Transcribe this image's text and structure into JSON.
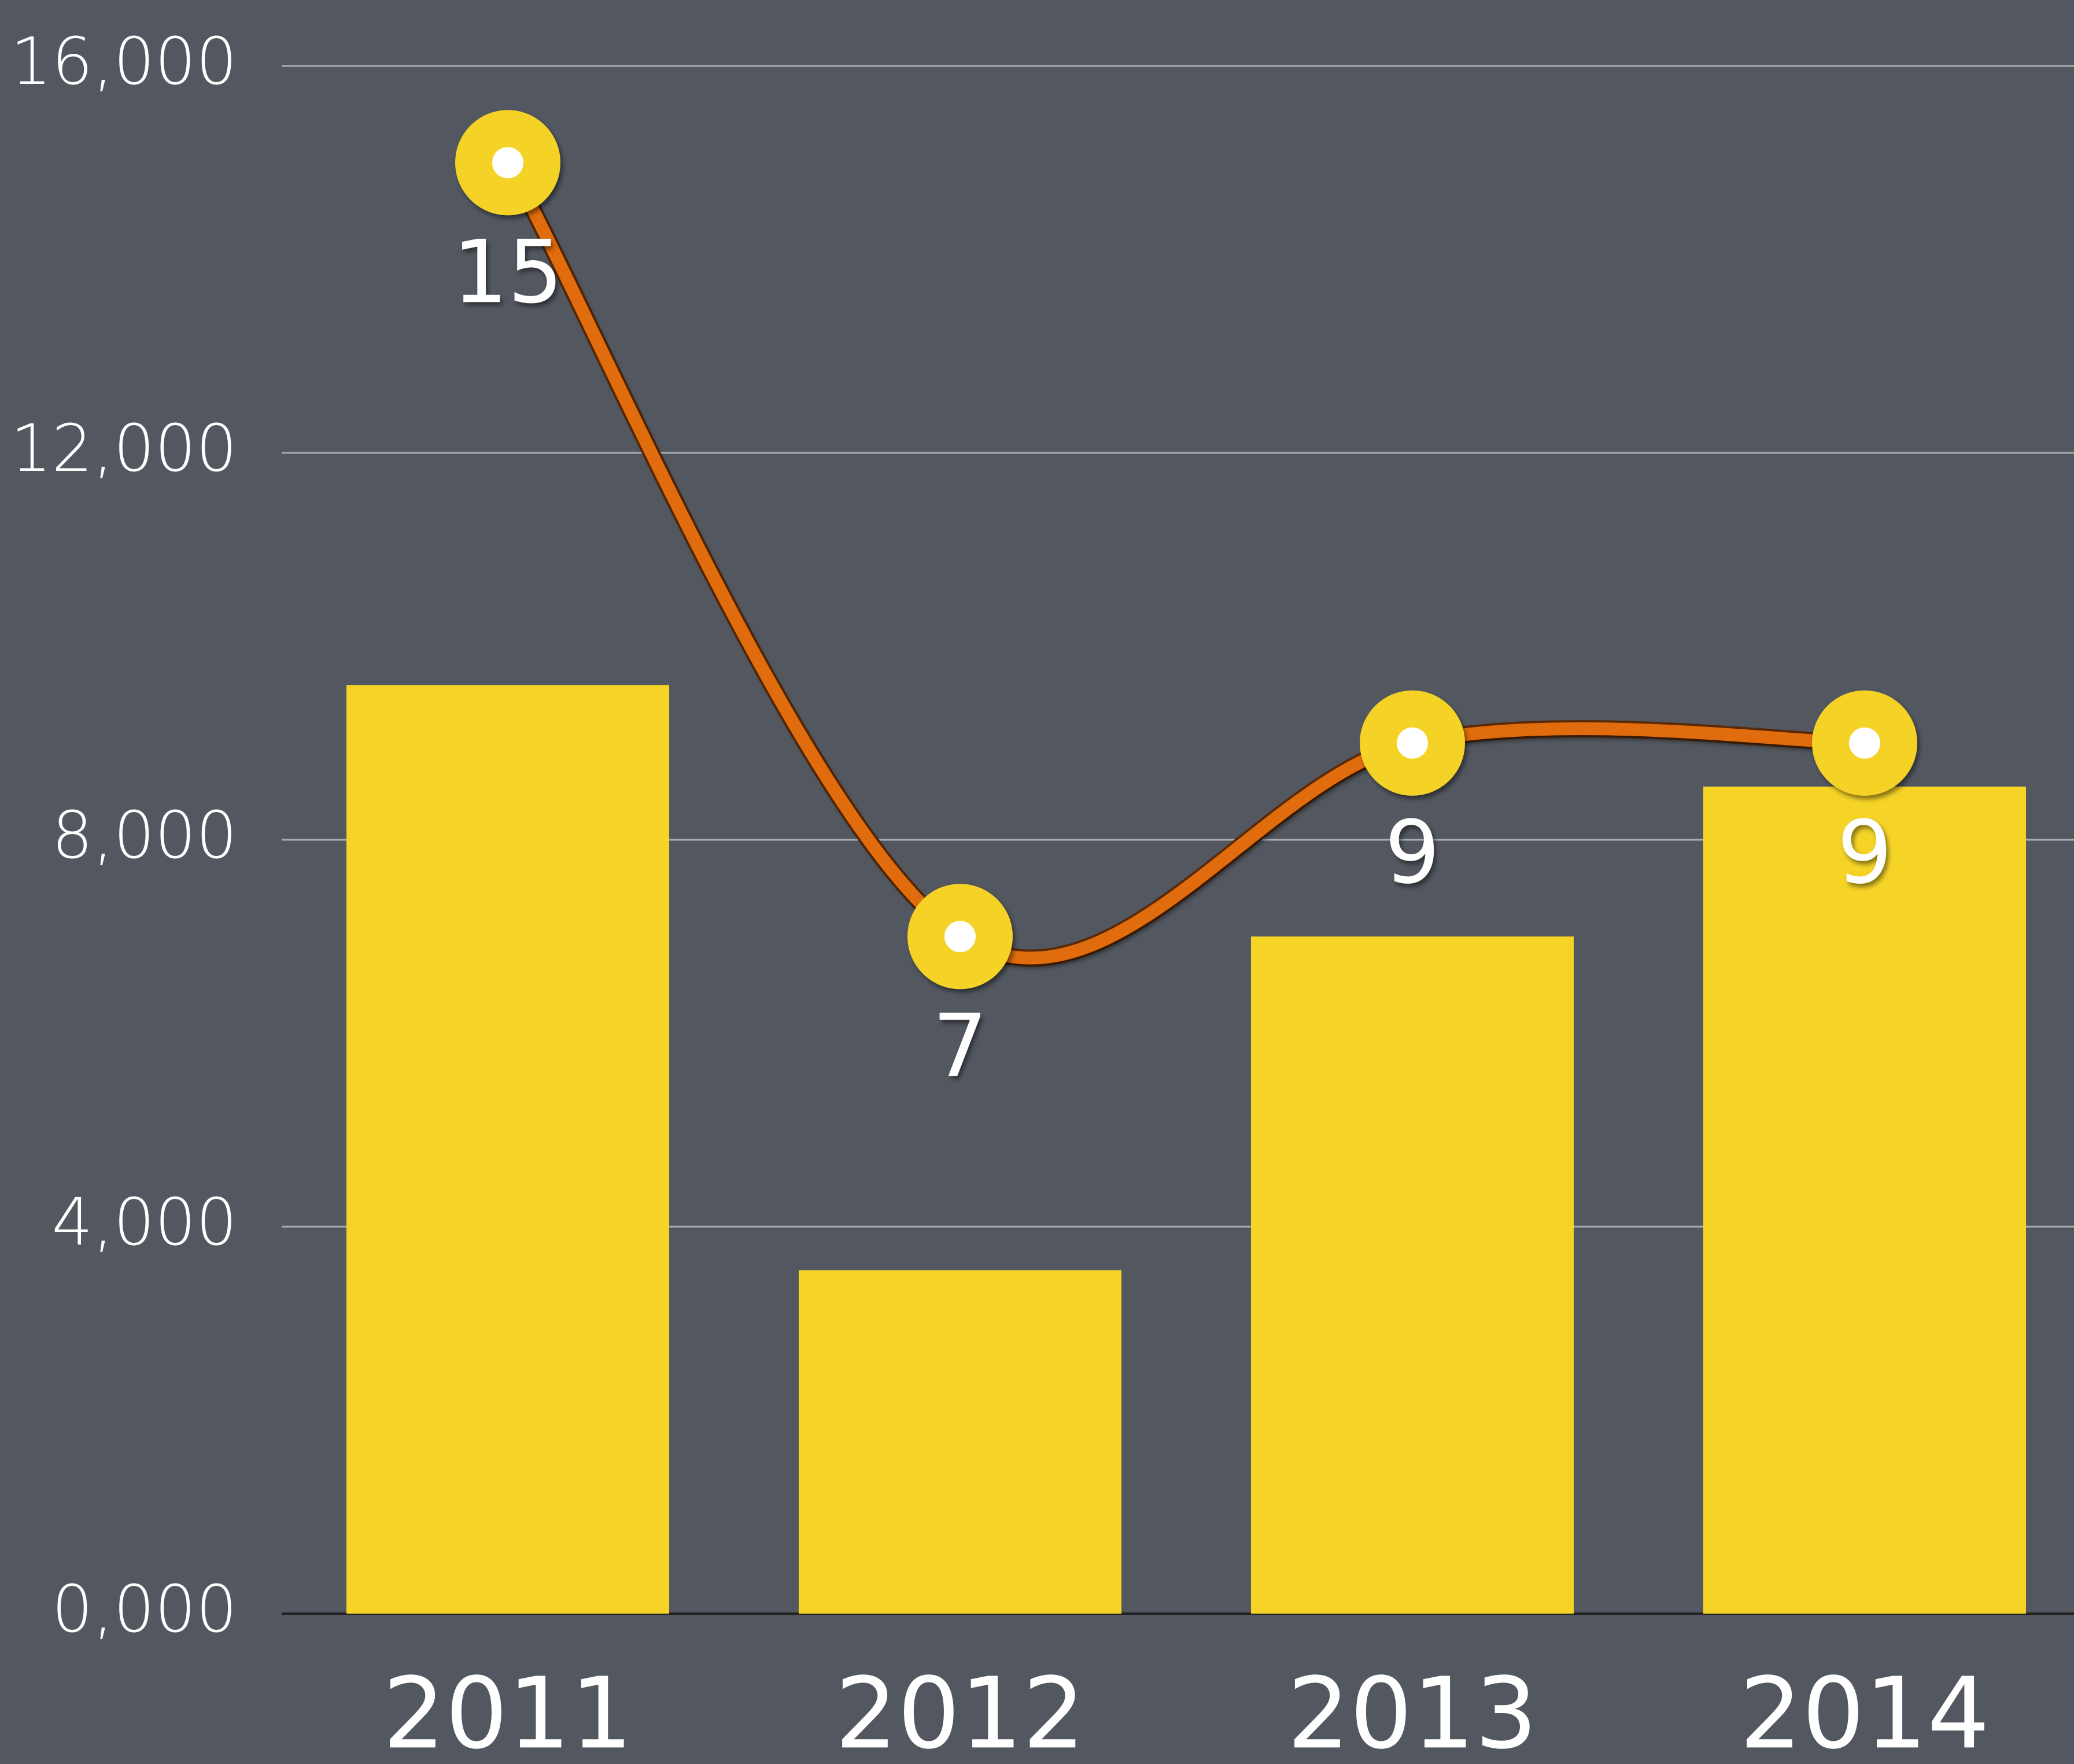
{
  "chart_data": {
    "type": "bar",
    "categories": [
      "2011",
      "2012",
      "2013",
      "2014"
    ],
    "series": [
      {
        "type": "bar",
        "color": "#f5d327",
        "values": [
          9600,
          3550,
          7000,
          8550
        ]
      },
      {
        "type": "line",
        "color": "#e06c10",
        "marker_color": "#f5d327",
        "values": [
          15000,
          7000,
          9000,
          9000
        ],
        "value_labels": [
          "15",
          "7",
          "9",
          "9"
        ]
      }
    ],
    "ylim": [
      0,
      16000
    ],
    "yticks": [
      {
        "value": 0,
        "label": "0,000"
      },
      {
        "value": 4000,
        "label": "4,000"
      },
      {
        "value": 8000,
        "label": "8,000"
      },
      {
        "value": 12000,
        "label": "12,000"
      },
      {
        "value": 16000,
        "label": "16,000"
      }
    ],
    "grid": true
  }
}
